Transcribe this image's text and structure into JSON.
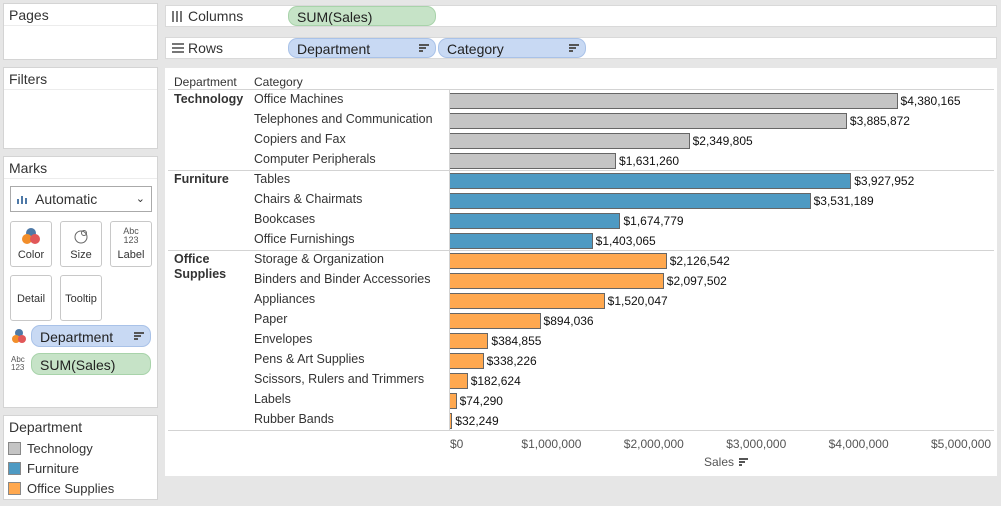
{
  "panels": {
    "pages_title": "Pages",
    "filters_title": "Filters",
    "marks_title": "Marks"
  },
  "shelves": {
    "columns_label": "Columns",
    "columns_pill": "SUM(Sales)",
    "rows_label": "Rows",
    "rows_pills": [
      "Department",
      "Category"
    ]
  },
  "marks": {
    "mark_type": "Automatic",
    "buttons": {
      "color": "Color",
      "size": "Size",
      "label": "Label",
      "detail": "Detail",
      "tooltip": "Tooltip"
    },
    "color_pill": "Department",
    "label_pill": "SUM(Sales)"
  },
  "legend": {
    "title": "Department",
    "items": [
      {
        "label": "Technology",
        "color": "#c4c4c4"
      },
      {
        "label": "Furniture",
        "color": "#4e9ac3"
      },
      {
        "label": "Office Supplies",
        "color": "#ffa84f"
      }
    ]
  },
  "headers": {
    "department": "Department",
    "category": "Category"
  },
  "chart_data": {
    "type": "bar",
    "orientation": "horizontal",
    "xlabel": "Sales",
    "xlim": [
      0,
      5000000
    ],
    "x_ticks": [
      "$0",
      "$1,000,000",
      "$2,000,000",
      "$3,000,000",
      "$4,000,000",
      "$5,000,000"
    ],
    "groups": [
      {
        "department": "Technology",
        "color": "#c4c4c4",
        "categories": [
          {
            "name": "Office Machines",
            "value": 4380165,
            "label": "$4,380,165"
          },
          {
            "name": "Telephones and Communication",
            "value": 3885872,
            "label": "$3,885,872"
          },
          {
            "name": "Copiers and Fax",
            "value": 2349805,
            "label": "$2,349,805"
          },
          {
            "name": "Computer Peripherals",
            "value": 1631260,
            "label": "$1,631,260"
          }
        ]
      },
      {
        "department": "Furniture",
        "color": "#4e9ac3",
        "categories": [
          {
            "name": "Tables",
            "value": 3927952,
            "label": "$3,927,952"
          },
          {
            "name": "Chairs & Chairmats",
            "value": 3531189,
            "label": "$3,531,189"
          },
          {
            "name": "Bookcases",
            "value": 1674779,
            "label": "$1,674,779"
          },
          {
            "name": "Office Furnishings",
            "value": 1403065,
            "label": "$1,403,065"
          }
        ]
      },
      {
        "department": "Office\nSupplies",
        "color": "#ffa84f",
        "categories": [
          {
            "name": "Storage & Organization",
            "value": 2126542,
            "label": "$2,126,542"
          },
          {
            "name": "Binders and Binder Accessories",
            "value": 2097502,
            "label": "$2,097,502"
          },
          {
            "name": "Appliances",
            "value": 1520047,
            "label": "$1,520,047"
          },
          {
            "name": "Paper",
            "value": 894036,
            "label": "$894,036"
          },
          {
            "name": "Envelopes",
            "value": 384855,
            "label": "$384,855"
          },
          {
            "name": "Pens & Art Supplies",
            "value": 338226,
            "label": "$338,226"
          },
          {
            "name": "Scissors, Rulers and Trimmers",
            "value": 182624,
            "label": "$182,624"
          },
          {
            "name": "Labels",
            "value": 74290,
            "label": "$74,290"
          },
          {
            "name": "Rubber Bands",
            "value": 32249,
            "label": "$32,249"
          }
        ]
      }
    ]
  }
}
